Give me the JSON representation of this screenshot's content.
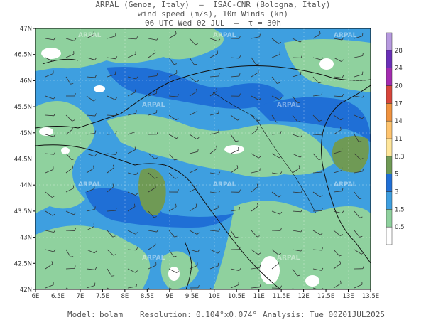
{
  "header": {
    "line1": "ARPAL (Genoa, Italy)  —  ISAC-CNR (Bologna, Italy)",
    "line2": "wind speed (m/s), 10m Winds (kn)",
    "line3": "06 UTC Wed 02 JUL  —  τ = 30h"
  },
  "lat_labels": [
    "47N",
    "46.5N",
    "46N",
    "45.5N",
    "45N",
    "44.5N",
    "44N",
    "43.5N",
    "43N",
    "42.5N",
    "42N"
  ],
  "lon_labels": [
    "6E",
    "6.5E",
    "7E",
    "7.5E",
    "8E",
    "8.5E",
    "9E",
    "9.5E",
    "10E",
    "10.5E",
    "11E",
    "11.5E",
    "12E",
    "12.5E",
    "13E",
    "13.5E"
  ],
  "colorbar": {
    "levels": [
      "0.5",
      "1.5",
      "3",
      "5",
      "8.3",
      "11",
      "14",
      "17",
      "20",
      "24",
      "28"
    ],
    "colors": [
      "#ffffff",
      "#8fd19e",
      "#3e9fe0",
      "#1f6fd6",
      "#6f9a55",
      "#ffe69a",
      "#ffc46e",
      "#f0923e",
      "#d8453a",
      "#a42bb0",
      "#6a2fb8",
      "#b79ae0"
    ]
  },
  "watermark": "ARPAL",
  "footer": {
    "model_label": "Model:",
    "model_value": "bolam",
    "resolution_label": "Resolution:",
    "resolution_value": "0.104°x0.074°",
    "analysis_label": "Analysis:",
    "analysis_value": "Tue 00Z01JUL2025"
  }
}
